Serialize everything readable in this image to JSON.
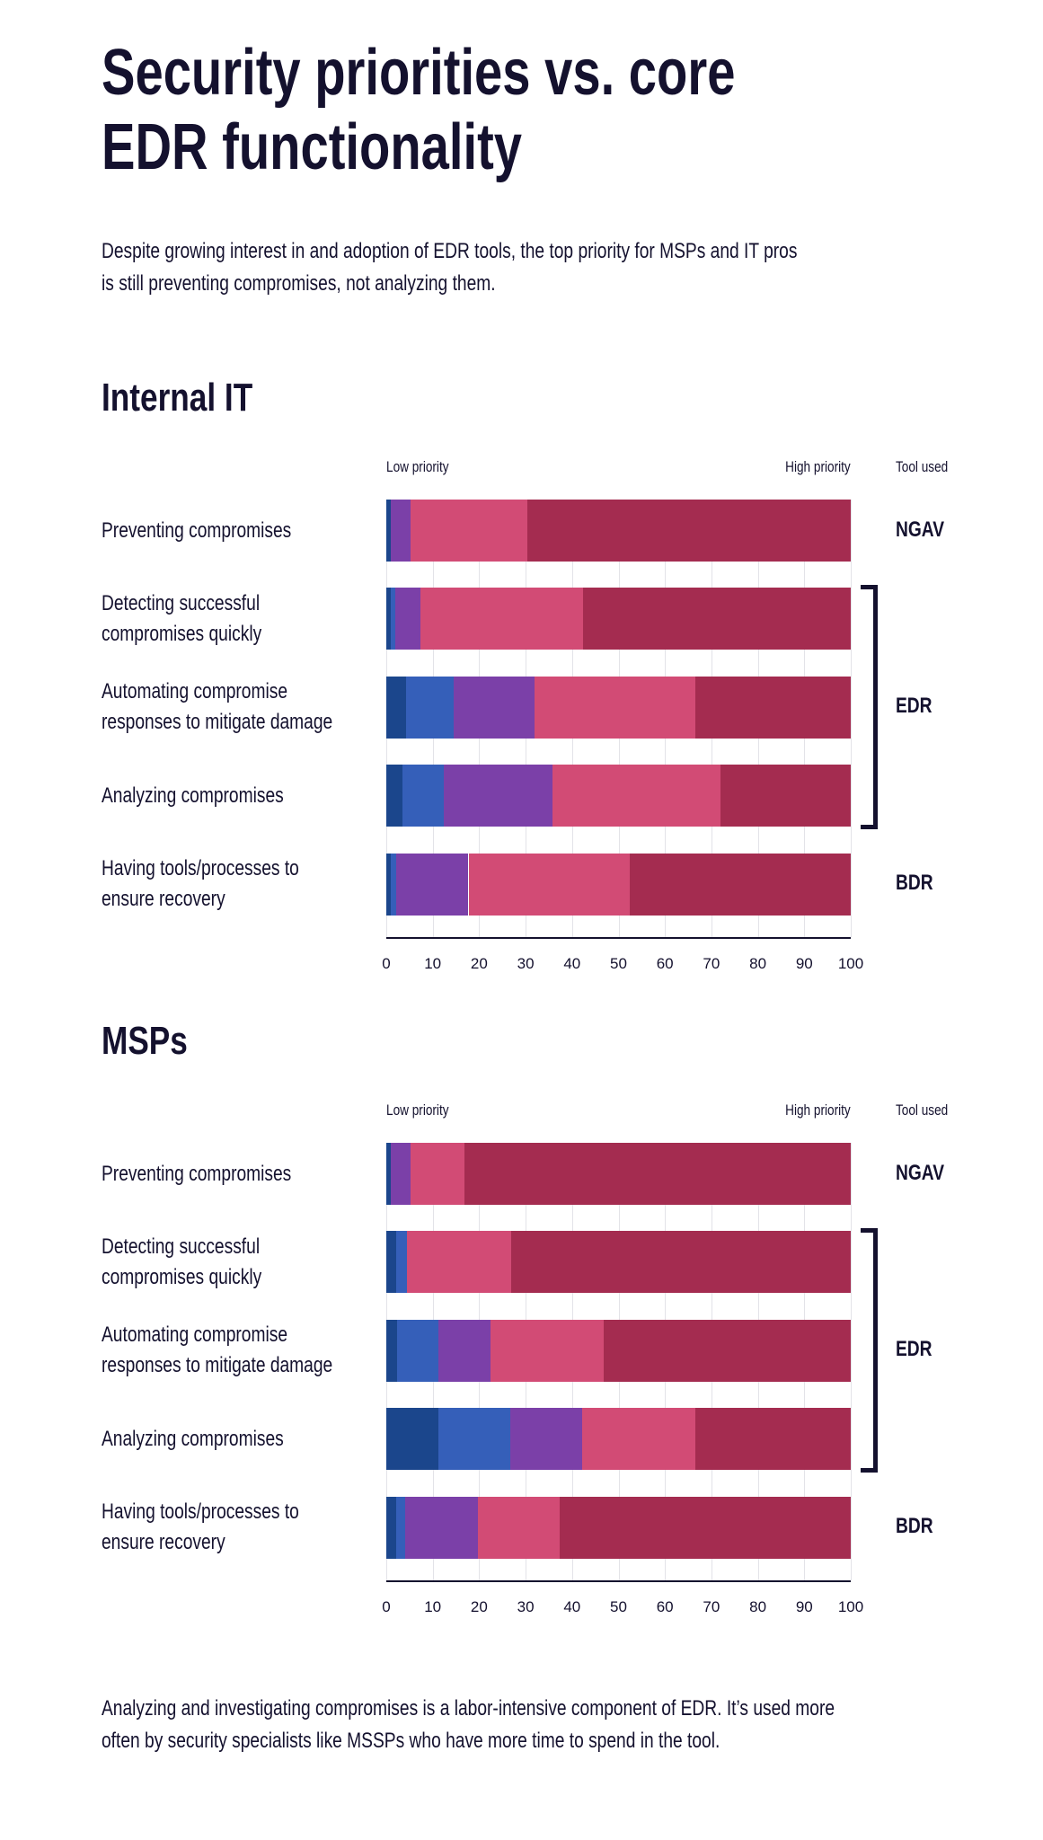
{
  "title_lines": [
    "Security priorities vs. core",
    "EDR functionality"
  ],
  "subtitle_lines": [
    "Despite growing interest in and adoption of EDR tools, the top priority for MSPs and IT pros",
    "is still preventing compromises, not analyzing them."
  ],
  "footer_lines": [
    "Analyzing and investigating compromises is a labor-intensive component of EDR. It’s used more",
    "often by security specialists like MSSPs who have more time to spend in the tool."
  ],
  "colors": {
    "text": "#14112e",
    "segments": [
      "#1b468c",
      "#355fb9",
      "#7b40a8",
      "#d24b75",
      "#a42c50"
    ],
    "grid": "#e3e3e8"
  },
  "chart_data": [
    {
      "type": "bar",
      "orientation": "horizontal",
      "stacked": true,
      "title": "Internal IT",
      "low_label": "Low priority",
      "high_label": "High priority",
      "tool_header": "Tool used",
      "categories": [
        [
          "Preventing compromises"
        ],
        [
          "Detecting successful",
          "compromises quickly"
        ],
        [
          "Automating compromise",
          "responses to mitigate damage"
        ],
        [
          "Analyzing compromises"
        ],
        [
          "Having tools/processes to",
          "ensure recovery"
        ]
      ],
      "tools": [
        {
          "label": "NGAV",
          "rows": [
            0
          ]
        },
        {
          "label": "EDR",
          "rows": [
            1,
            2,
            3
          ]
        },
        {
          "label": "BDR",
          "rows": [
            4
          ]
        }
      ],
      "series": [
        {
          "values": [
            1,
            1,
            4.2,
            3.4,
            1
          ]
        },
        {
          "values": [
            0,
            1,
            10.3,
            8.9,
            1.1
          ]
        },
        {
          "values": [
            4.3,
            5.3,
            17.4,
            23.4,
            15.6
          ]
        },
        {
          "values": [
            25,
            35.1,
            34.6,
            36.3,
            34.8
          ]
        },
        {
          "values": [
            69.7,
            57.6,
            33.5,
            28,
            47.5
          ]
        }
      ],
      "xlim": [
        0,
        100
      ],
      "xticks": [
        "0",
        "10",
        "20",
        "30",
        "40",
        "50",
        "60",
        "70",
        "80",
        "90",
        "100"
      ],
      "grid": true
    },
    {
      "type": "bar",
      "orientation": "horizontal",
      "stacked": true,
      "title": "MSPs",
      "low_label": "Low priority",
      "high_label": "High priority",
      "tool_header": "Tool used",
      "categories": [
        [
          "Preventing compromises"
        ],
        [
          "Detecting successful",
          "compromises quickly"
        ],
        [
          "Automating compromise",
          "responses to mitigate damage"
        ],
        [
          "Analyzing compromises"
        ],
        [
          "Having tools/processes to",
          "ensure recovery"
        ]
      ],
      "tools": [
        {
          "label": "NGAV",
          "rows": [
            0
          ]
        },
        {
          "label": "EDR",
          "rows": [
            1,
            2,
            3
          ]
        },
        {
          "label": "BDR",
          "rows": [
            4
          ]
        }
      ],
      "series": [
        {
          "values": [
            1,
            2.1,
            2.4,
            11.2,
            2.1
          ]
        },
        {
          "values": [
            0,
            2.3,
            8.8,
            15.5,
            2
          ]
        },
        {
          "values": [
            4.3,
            0,
            11.2,
            15.4,
            15.6
          ]
        },
        {
          "values": [
            11.6,
            22.4,
            24.5,
            24.4,
            17.7
          ]
        },
        {
          "values": [
            83.1,
            73.2,
            53.1,
            33.5,
            62.6
          ]
        }
      ],
      "xlim": [
        0,
        100
      ],
      "xticks": [
        "0",
        "10",
        "20",
        "30",
        "40",
        "50",
        "60",
        "70",
        "80",
        "90",
        "100"
      ],
      "grid": true
    }
  ]
}
